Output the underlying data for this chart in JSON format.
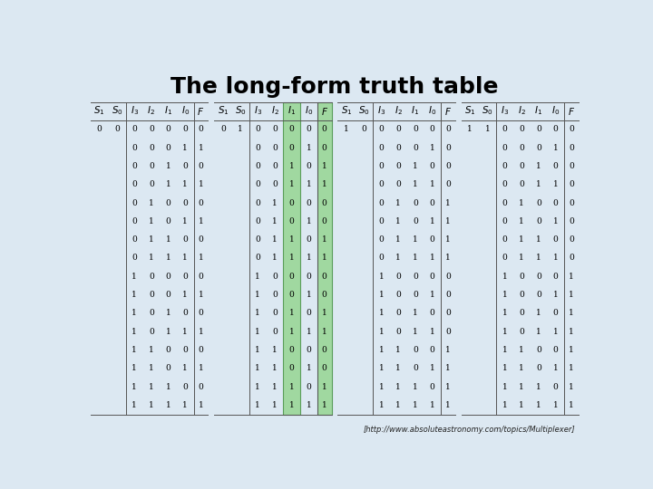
{
  "title": "The long-form truth table",
  "subtitle": "[http://www.absoluteastronomy.com/topics/Multiplexer]",
  "bg_color": "#dce8f2",
  "sections": [
    {
      "s1": 0,
      "s0": 0,
      "highlight_i_col": null,
      "highlight_color": null
    },
    {
      "s1": 0,
      "s0": 1,
      "highlight_i_col": 4,
      "highlight_color": "#a8d8a8"
    },
    {
      "s1": 1,
      "s0": 0,
      "highlight_i_col": 3,
      "highlight_color": null
    },
    {
      "s1": 1,
      "s0": 1,
      "highlight_i_col": null,
      "highlight_color": null
    }
  ],
  "title_fontsize": 18,
  "cell_fontsize": 6.5,
  "header_fontsize": 7.5
}
